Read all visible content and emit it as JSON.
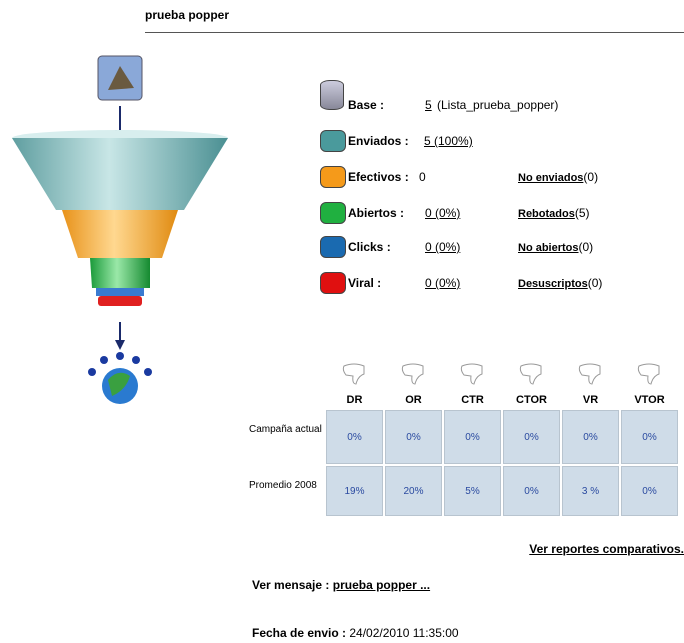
{
  "header": {
    "title": "prueba popper"
  },
  "stats": [
    {
      "label": "Base :",
      "value": "5",
      "note": "(Lista_prueba_popper)"
    },
    {
      "label": "Enviados :",
      "value": "5 (100%)"
    },
    {
      "label": "Efectivos :",
      "value": "0",
      "link": "No enviados",
      "count": "(0)"
    },
    {
      "label": "Abiertos :",
      "value": "0 (0%)",
      "link": "Rebotados",
      "count": "(5)"
    },
    {
      "label": "Clicks :",
      "value": "0 (0%)",
      "link": "No abiertos",
      "count": "(0)"
    },
    {
      "label": "Viral :",
      "value": "0 (0%)",
      "link": "Desuscriptos",
      "count": "(0)"
    }
  ],
  "table": {
    "columns": [
      "DR",
      "OR",
      "CTR",
      "CTOR",
      "VR",
      "VTOR"
    ],
    "rows": [
      {
        "label": "Campaña actual",
        "cells": [
          "0%",
          "0%",
          "0%",
          "0%",
          "0%",
          "0%"
        ]
      },
      {
        "label": "Promedio 2008",
        "cells": [
          "19%",
          "20%",
          "5%",
          "0%",
          "3 %",
          "0%"
        ]
      }
    ]
  },
  "footer": {
    "compare_link": "Ver reportes comparativos.",
    "message_label": "Ver mensaje :",
    "message_link": "prueba popper ...",
    "date_label": "Fecha de envio :",
    "date": "24/02/2010 11:35:00"
  }
}
